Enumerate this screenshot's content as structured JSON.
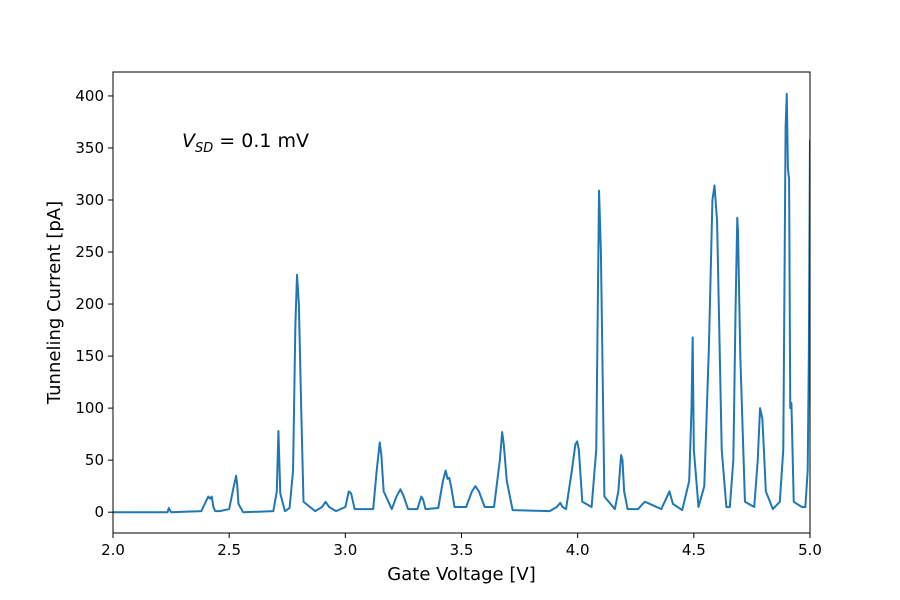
{
  "chart_data": {
    "type": "line",
    "xlabel": "Gate Voltage [V]",
    "ylabel": "Tunneling Current [pA]",
    "annotation": {
      "var": "V",
      "sub": "SD",
      "text": " = 0.1 mV"
    },
    "xlim": [
      2.0,
      5.0
    ],
    "ylim": [
      -20,
      423
    ],
    "xticks": [
      2.0,
      2.5,
      3.0,
      3.5,
      4.0,
      4.5,
      5.0
    ],
    "xtick_labels": [
      "2.0",
      "2.5",
      "3.0",
      "3.5",
      "4.0",
      "4.5",
      "5.0"
    ],
    "yticks": [
      0,
      50,
      100,
      150,
      200,
      250,
      300,
      350,
      400
    ],
    "ytick_labels": [
      "0",
      "50",
      "100",
      "150",
      "200",
      "250",
      "300",
      "350",
      "400"
    ],
    "grid": false,
    "legend": null,
    "line_color": "#1f77b4",
    "series": [
      {
        "x": [
          2.0,
          2.2,
          2.235,
          2.24,
          2.25,
          2.38,
          2.41,
          2.418,
          2.425,
          2.432,
          2.44,
          2.46,
          2.5,
          2.52,
          2.53,
          2.535,
          2.54,
          2.55,
          2.56,
          2.69,
          2.705,
          2.712,
          2.72,
          2.74,
          2.76,
          2.775,
          2.785,
          2.792,
          2.8,
          2.81,
          2.82,
          2.87,
          2.9,
          2.915,
          2.93,
          2.96,
          3.0,
          3.015,
          3.025,
          3.04,
          3.12,
          3.135,
          3.148,
          3.155,
          3.165,
          3.2,
          3.22,
          3.237,
          3.25,
          3.27,
          3.31,
          3.327,
          3.335,
          3.345,
          3.4,
          3.42,
          3.432,
          3.44,
          3.447,
          3.455,
          3.47,
          3.52,
          3.545,
          3.56,
          3.575,
          3.6,
          3.64,
          3.665,
          3.675,
          3.682,
          3.695,
          3.72,
          3.88,
          3.91,
          3.925,
          3.935,
          3.95,
          3.975,
          3.99,
          3.998,
          4.005,
          4.02,
          4.06,
          4.08,
          4.092,
          4.1,
          4.115,
          4.16,
          4.175,
          4.187,
          4.193,
          4.2,
          4.215,
          4.26,
          4.28,
          4.29,
          4.36,
          4.385,
          4.395,
          4.41,
          4.45,
          4.48,
          4.49,
          4.495,
          4.5,
          4.52,
          4.545,
          4.565,
          4.58,
          4.589,
          4.6,
          4.62,
          4.64,
          4.655,
          4.67,
          4.68,
          4.687,
          4.69,
          4.7,
          4.72,
          4.76,
          4.775,
          4.785,
          4.795,
          4.81,
          4.84,
          4.87,
          4.885,
          4.895,
          4.9,
          4.905,
          4.91,
          4.915,
          4.92,
          4.93,
          4.965,
          4.98,
          4.99,
          4.995,
          5.0
        ],
        "y": [
          0,
          0,
          0,
          4,
          0,
          1,
          15,
          13,
          15,
          5,
          1,
          1,
          3,
          25,
          35,
          25,
          8,
          4,
          0,
          1,
          20,
          78,
          18,
          1,
          4,
          40,
          180,
          228,
          200,
          100,
          10,
          1,
          5,
          10,
          5,
          1,
          5,
          20,
          18,
          3,
          3,
          40,
          67,
          55,
          20,
          3,
          15,
          22,
          16,
          3,
          3,
          15,
          12,
          3,
          4,
          30,
          40,
          32,
          33,
          25,
          5,
          5,
          20,
          25,
          20,
          5,
          5,
          50,
          77,
          65,
          30,
          2,
          1,
          5,
          9,
          5,
          3,
          40,
          65,
          68,
          60,
          10,
          5,
          60,
          309,
          250,
          15,
          3,
          20,
          55,
          50,
          20,
          3,
          3,
          8,
          10,
          3,
          15,
          20,
          8,
          2,
          30,
          100,
          168,
          60,
          5,
          25,
          160,
          300,
          314,
          280,
          60,
          5,
          5,
          50,
          200,
          283,
          270,
          150,
          10,
          5,
          50,
          100,
          90,
          20,
          3,
          10,
          60,
          370,
          402,
          330,
          320,
          100,
          105,
          10,
          5,
          5,
          40,
          150,
          358
        ]
      }
    ]
  }
}
